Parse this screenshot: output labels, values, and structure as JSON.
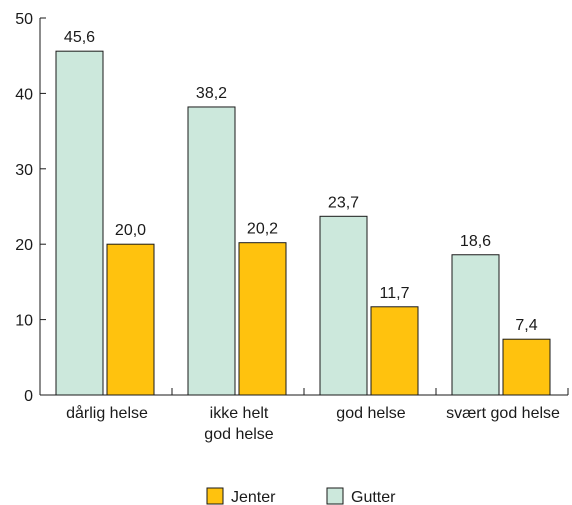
{
  "chart_data": {
    "type": "bar",
    "categories": [
      [
        "dårlig helse"
      ],
      [
        "ikke helt",
        "god helse"
      ],
      [
        "god helse"
      ],
      [
        "svært god helse"
      ]
    ],
    "series": [
      {
        "name": "Gutter",
        "values": [
          45.6,
          38.2,
          23.7,
          18.6
        ],
        "value_labels": [
          "45,6",
          "38,2",
          "23,7",
          "18,6"
        ],
        "color": "#cce8dc"
      },
      {
        "name": "Jenter",
        "values": [
          20.0,
          20.2,
          11.7,
          7.4
        ],
        "value_labels": [
          "20,0",
          "20,2",
          "11,7",
          "7,4"
        ],
        "color": "#ffc20e"
      }
    ],
    "ylim": [
      0,
      50
    ],
    "yticks": [
      0,
      10,
      20,
      30,
      40,
      50
    ],
    "legend": {
      "placement": "bottom-center",
      "order": [
        "Jenter",
        "Gutter"
      ]
    },
    "grid": false
  }
}
